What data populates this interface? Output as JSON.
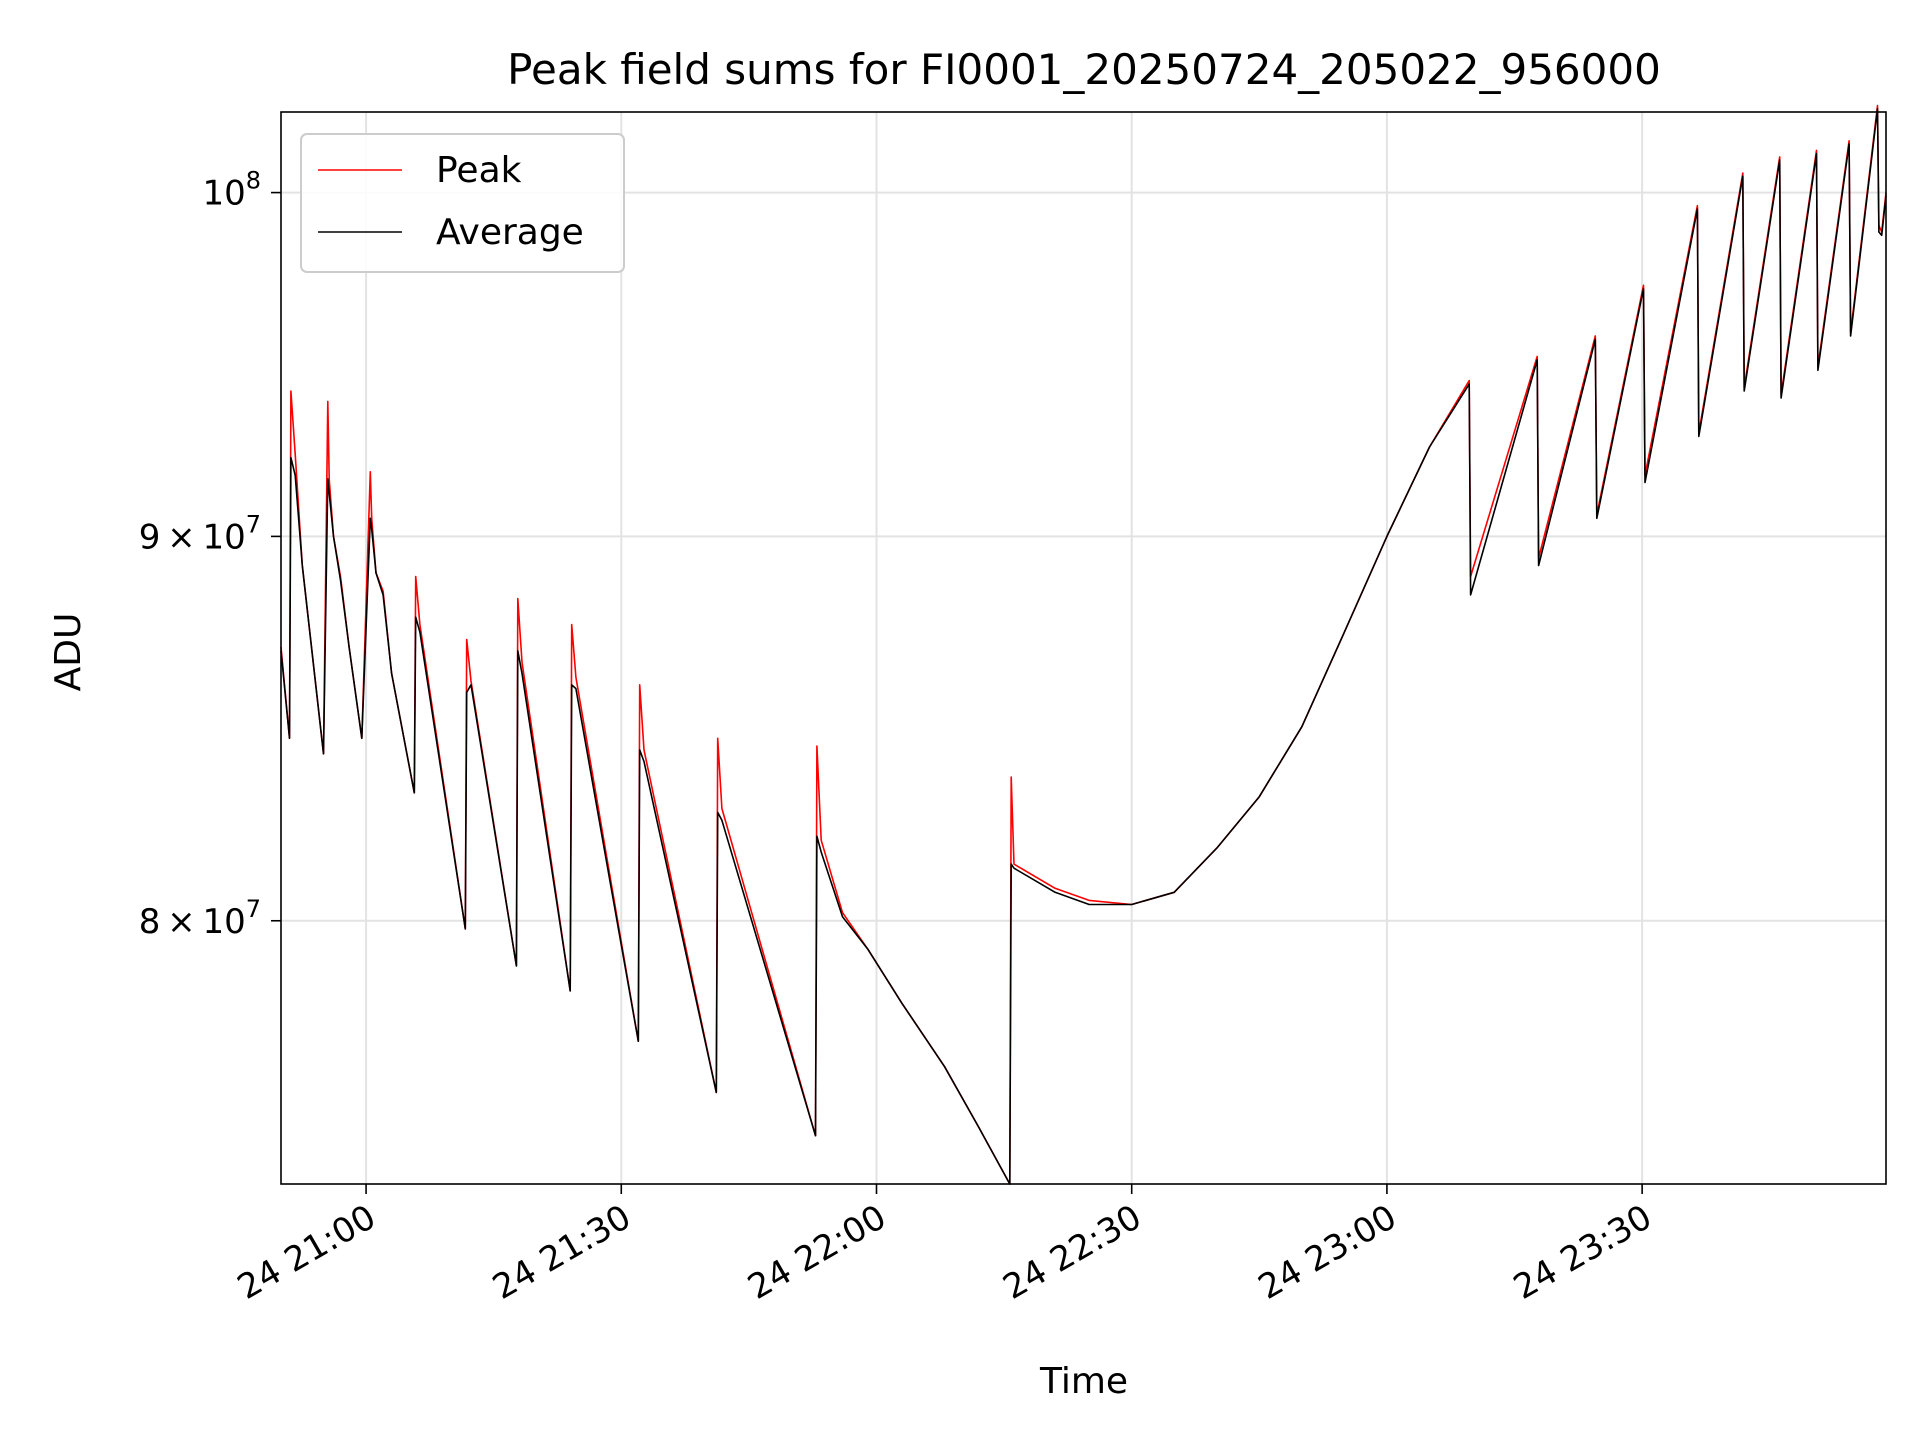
{
  "chart_data": {
    "type": "line",
    "title": "Peak field sums for FI0001_20250724_205022_956000",
    "xlabel": "Time",
    "ylabel": "ADU",
    "xlim": [
      "2025-07-24 20:50:00",
      "2025-07-24 23:58:40"
    ],
    "ylim": [
      73800000,
      102500000
    ],
    "yscale": "log",
    "grid": true,
    "legend_position": "top-left",
    "x_ticks": [
      {
        "value": "2025-07-24 21:00",
        "label": "24 21:00"
      },
      {
        "value": "2025-07-24 21:30",
        "label": "24 21:30"
      },
      {
        "value": "2025-07-24 22:00",
        "label": "24 22:00"
      },
      {
        "value": "2025-07-24 22:30",
        "label": "24 22:30"
      },
      {
        "value": "2025-07-24 23:00",
        "label": "24 23:00"
      },
      {
        "value": "2025-07-24 23:30",
        "label": "24 23:30"
      }
    ],
    "y_ticks": [
      {
        "value": 80000000,
        "mantissa": "8",
        "base": "10",
        "exponent": "7"
      },
      {
        "value": 90000000,
        "mantissa": "9",
        "base": "10",
        "exponent": "7"
      },
      {
        "value": 100000000,
        "mantissa": "",
        "base": "10",
        "exponent": "8"
      }
    ],
    "series": [
      {
        "name": "Peak",
        "color": "#ff0000",
        "x": [
          "2025-07-24 20:50:00",
          "2025-07-24 20:51:00",
          "2025-07-24 20:51:10",
          "2025-07-24 20:51:40",
          "2025-07-24 20:52:30",
          "2025-07-24 20:55:00",
          "2025-07-24 20:55:30",
          "2025-07-24 20:55:40",
          "2025-07-24 20:56:10",
          "2025-07-24 20:57:00",
          "2025-07-24 20:58:00",
          "2025-07-24 20:59:30",
          "2025-07-24 21:00:30",
          "2025-07-24 21:00:40",
          "2025-07-24 21:01:10",
          "2025-07-24 21:02:00",
          "2025-07-24 21:03:00",
          "2025-07-24 21:05:40",
          "2025-07-24 21:05:50",
          "2025-07-24 21:06:20",
          "2025-07-24 21:11:40",
          "2025-07-24 21:11:50",
          "2025-07-24 21:12:20",
          "2025-07-24 21:17:40",
          "2025-07-24 21:17:50",
          "2025-07-24 21:18:20",
          "2025-07-24 21:24:00",
          "2025-07-24 21:24:10",
          "2025-07-24 21:24:40",
          "2025-07-24 21:32:00",
          "2025-07-24 21:32:10",
          "2025-07-24 21:32:40",
          "2025-07-24 21:41:10",
          "2025-07-24 21:41:20",
          "2025-07-24 21:41:50",
          "2025-07-24 21:52:50",
          "2025-07-24 21:53:00",
          "2025-07-24 21:53:30",
          "2025-07-24 21:56:00",
          "2025-07-24 21:59:00",
          "2025-07-24 22:03:00",
          "2025-07-24 22:08:00",
          "2025-07-24 22:12:00",
          "2025-07-24 22:15:40",
          "2025-07-24 22:15:50",
          "2025-07-24 22:16:10",
          "2025-07-24 22:21:00",
          "2025-07-24 22:25:00",
          "2025-07-24 22:30:00",
          "2025-07-24 22:35:00",
          "2025-07-24 22:40:00",
          "2025-07-24 22:45:00",
          "2025-07-24 22:50:00",
          "2025-07-24 22:55:00",
          "2025-07-24 23:00:00",
          "2025-07-24 23:05:00",
          "2025-07-24 23:09:40",
          "2025-07-24 23:09:50",
          "2025-07-24 23:17:40",
          "2025-07-24 23:17:50",
          "2025-07-24 23:24:30",
          "2025-07-24 23:24:40",
          "2025-07-24 23:30:10",
          "2025-07-24 23:30:20",
          "2025-07-24 23:36:30",
          "2025-07-24 23:36:40",
          "2025-07-24 23:41:50",
          "2025-07-24 23:42:00",
          "2025-07-24 23:46:10",
          "2025-07-24 23:46:20",
          "2025-07-24 23:50:30",
          "2025-07-24 23:50:40",
          "2025-07-24 23:54:20",
          "2025-07-24 23:54:30",
          "2025-07-24 23:57:40",
          "2025-07-24 23:57:50",
          "2025-07-24 23:58:10",
          "2025-07-24 23:58:40"
        ],
        "values": [
          87000000,
          84600000,
          94100000,
          92300000,
          89200000,
          84200000,
          93800000,
          91600000,
          90000000,
          88900000,
          87000000,
          84600000,
          91800000,
          90500000,
          89000000,
          88500000,
          86300000,
          83200000,
          88900000,
          87600000,
          79800000,
          87200000,
          86100000,
          78900000,
          88300000,
          86600000,
          78300000,
          87600000,
          86200000,
          77100000,
          86000000,
          84300000,
          75900000,
          84600000,
          82800000,
          74900000,
          84400000,
          82000000,
          80200000,
          79300000,
          78000000,
          76500000,
          75100000,
          73800000,
          83600000,
          81400000,
          80800000,
          80500000,
          80400000,
          80700000,
          81800000,
          83100000,
          84900000,
          87400000,
          90000000,
          92500000,
          94400000,
          88900000,
          95100000,
          89400000,
          95700000,
          90600000,
          97200000,
          91700000,
          99600000,
          92900000,
          100600000,
          94200000,
          101100000,
          94000000,
          101300000,
          94800000,
          101600000,
          95800000,
          102700000,
          99000000,
          98800000,
          100000000
        ]
      },
      {
        "name": "Average",
        "color": "#000000",
        "x": [
          "2025-07-24 20:50:00",
          "2025-07-24 20:51:00",
          "2025-07-24 20:51:10",
          "2025-07-24 20:51:40",
          "2025-07-24 20:52:30",
          "2025-07-24 20:55:00",
          "2025-07-24 20:55:30",
          "2025-07-24 20:55:40",
          "2025-07-24 20:56:10",
          "2025-07-24 20:57:00",
          "2025-07-24 20:58:00",
          "2025-07-24 20:59:30",
          "2025-07-24 21:00:30",
          "2025-07-24 21:00:40",
          "2025-07-24 21:01:10",
          "2025-07-24 21:02:00",
          "2025-07-24 21:03:00",
          "2025-07-24 21:05:40",
          "2025-07-24 21:05:50",
          "2025-07-24 21:06:20",
          "2025-07-24 21:11:40",
          "2025-07-24 21:11:50",
          "2025-07-24 21:12:20",
          "2025-07-24 21:17:40",
          "2025-07-24 21:17:50",
          "2025-07-24 21:18:20",
          "2025-07-24 21:24:00",
          "2025-07-24 21:24:10",
          "2025-07-24 21:24:40",
          "2025-07-24 21:32:00",
          "2025-07-24 21:32:10",
          "2025-07-24 21:32:40",
          "2025-07-24 21:41:10",
          "2025-07-24 21:41:20",
          "2025-07-24 21:41:50",
          "2025-07-24 21:52:50",
          "2025-07-24 21:53:00",
          "2025-07-24 21:53:30",
          "2025-07-24 21:56:00",
          "2025-07-24 21:59:00",
          "2025-07-24 22:03:00",
          "2025-07-24 22:08:00",
          "2025-07-24 22:12:00",
          "2025-07-24 22:15:40",
          "2025-07-24 22:15:50",
          "2025-07-24 22:16:10",
          "2025-07-24 22:21:00",
          "2025-07-24 22:25:00",
          "2025-07-24 22:30:00",
          "2025-07-24 22:35:00",
          "2025-07-24 22:40:00",
          "2025-07-24 22:45:00",
          "2025-07-24 22:50:00",
          "2025-07-24 22:55:00",
          "2025-07-24 23:00:00",
          "2025-07-24 23:05:00",
          "2025-07-24 23:09:40",
          "2025-07-24 23:09:50",
          "2025-07-24 23:17:40",
          "2025-07-24 23:17:50",
          "2025-07-24 23:24:30",
          "2025-07-24 23:24:40",
          "2025-07-24 23:30:10",
          "2025-07-24 23:30:20",
          "2025-07-24 23:36:30",
          "2025-07-24 23:36:40",
          "2025-07-24 23:41:50",
          "2025-07-24 23:42:00",
          "2025-07-24 23:46:10",
          "2025-07-24 23:46:20",
          "2025-07-24 23:50:30",
          "2025-07-24 23:50:40",
          "2025-07-24 23:54:20",
          "2025-07-24 23:54:30",
          "2025-07-24 23:57:40",
          "2025-07-24 23:57:50",
          "2025-07-24 23:58:10",
          "2025-07-24 23:58:40"
        ],
        "values": [
          86900000,
          84600000,
          92200000,
          91700000,
          89200000,
          84200000,
          91600000,
          91200000,
          90000000,
          88800000,
          87000000,
          84600000,
          90500000,
          90200000,
          89000000,
          88400000,
          86300000,
          83200000,
          87800000,
          87400000,
          79800000,
          85800000,
          86000000,
          78900000,
          86900000,
          86300000,
          78300000,
          86000000,
          85900000,
          77100000,
          84300000,
          84000000,
          75900000,
          82700000,
          82500000,
          74900000,
          82100000,
          81700000,
          80100000,
          79300000,
          78000000,
          76500000,
          75100000,
          73800000,
          81400000,
          81300000,
          80700000,
          80400000,
          80400000,
          80700000,
          81800000,
          83100000,
          84900000,
          87400000,
          90000000,
          92500000,
          94300000,
          88400000,
          95000000,
          89200000,
          95600000,
          90500000,
          97100000,
          91500000,
          99500000,
          92800000,
          100500000,
          94100000,
          101000000,
          93900000,
          101200000,
          94700000,
          101500000,
          95700000,
          102600000,
          98800000,
          98700000,
          99900000
        ]
      }
    ]
  }
}
